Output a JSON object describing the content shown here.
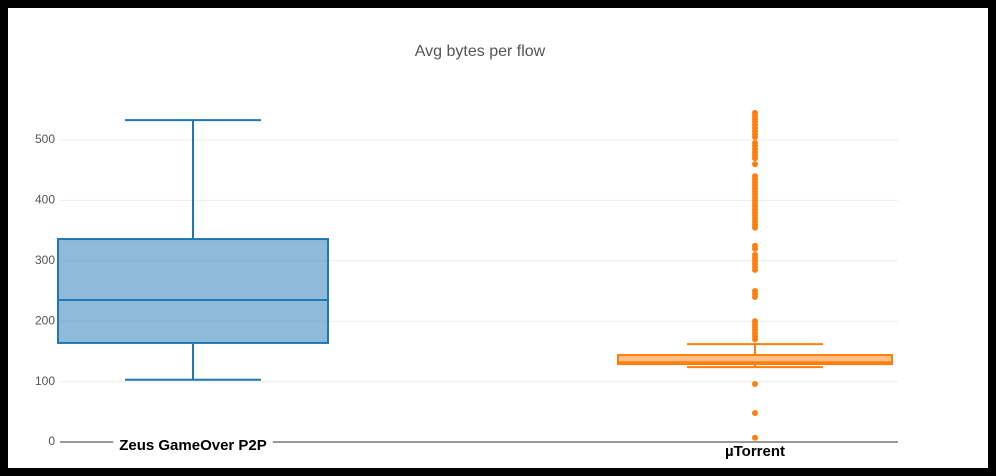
{
  "chart_data": {
    "type": "box",
    "title": "Avg bytes per flow",
    "ylim": [
      0,
      500
    ],
    "yticks": [
      0,
      100,
      200,
      300,
      400,
      500
    ],
    "grid": true,
    "boxes": [
      {
        "name": "Zeus GameOver P2P",
        "color": "#1f77b4",
        "whisker_low": 103,
        "q1": 164,
        "median": 235,
        "q3": 336,
        "whisker_high": 533,
        "outliers": []
      },
      {
        "name": "µTorrent",
        "color": "#ff7f0e",
        "whisker_low": 124,
        "q1": 129,
        "median": 132,
        "q3": 144,
        "whisker_high": 162,
        "outliers": [
          545,
          540,
          535,
          530,
          525,
          520,
          515,
          510,
          505,
          495,
          490,
          485,
          480,
          475,
          470,
          460,
          440,
          435,
          430,
          425,
          420,
          415,
          410,
          405,
          400,
          395,
          390,
          385,
          380,
          375,
          370,
          365,
          360,
          355,
          325,
          320,
          310,
          305,
          300,
          295,
          290,
          285,
          250,
          245,
          240,
          200,
          195,
          190,
          185,
          180,
          175,
          170,
          96,
          48,
          7
        ]
      }
    ]
  }
}
